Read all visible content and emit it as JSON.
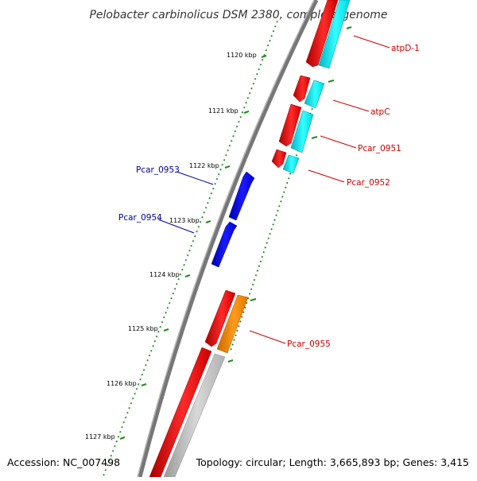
{
  "title": "Pelobacter carbinolicus DSM 2380, complete genome",
  "footer": {
    "accession": "Accession: NC_007498",
    "topology": "Topology: circular; Length: 3,665,893 bp; Genes: 3,415"
  },
  "scale": {
    "unit": "kbp",
    "ticks": [
      {
        "kbp": 1120,
        "label": "1120 kbp"
      },
      {
        "kbp": 1121,
        "label": "1121 kbp"
      },
      {
        "kbp": 1122,
        "label": "1122 kbp"
      },
      {
        "kbp": 1123,
        "label": "1123 kbp"
      },
      {
        "kbp": 1124,
        "label": "1124 kbp"
      },
      {
        "kbp": 1125,
        "label": "1125 kbp"
      },
      {
        "kbp": 1126,
        "label": "1126 kbp"
      },
      {
        "kbp": 1127,
        "label": "1127 kbp"
      }
    ]
  },
  "colors": {
    "forward_cds": "#ff0000",
    "reverse_cds": "#0000ff",
    "backbone": "#808080",
    "cyan_feature": "#00ffff",
    "orange_feature": "#ff8c00",
    "gray_feature": "#c0c0c0",
    "gc_ticks": "#228b22",
    "forward_label": "#cc0000",
    "reverse_label": "#000099"
  },
  "gene_labels": [
    {
      "text": "atpD-1",
      "strand": "forward"
    },
    {
      "text": "atpC",
      "strand": "forward"
    },
    {
      "text": "Pcar_0951",
      "strand": "forward"
    },
    {
      "text": "Pcar_0952",
      "strand": "forward"
    },
    {
      "text": "Pcar_0953",
      "strand": "reverse"
    },
    {
      "text": "Pcar_0954",
      "strand": "reverse"
    },
    {
      "text": "Pcar_0955",
      "strand": "forward"
    }
  ]
}
